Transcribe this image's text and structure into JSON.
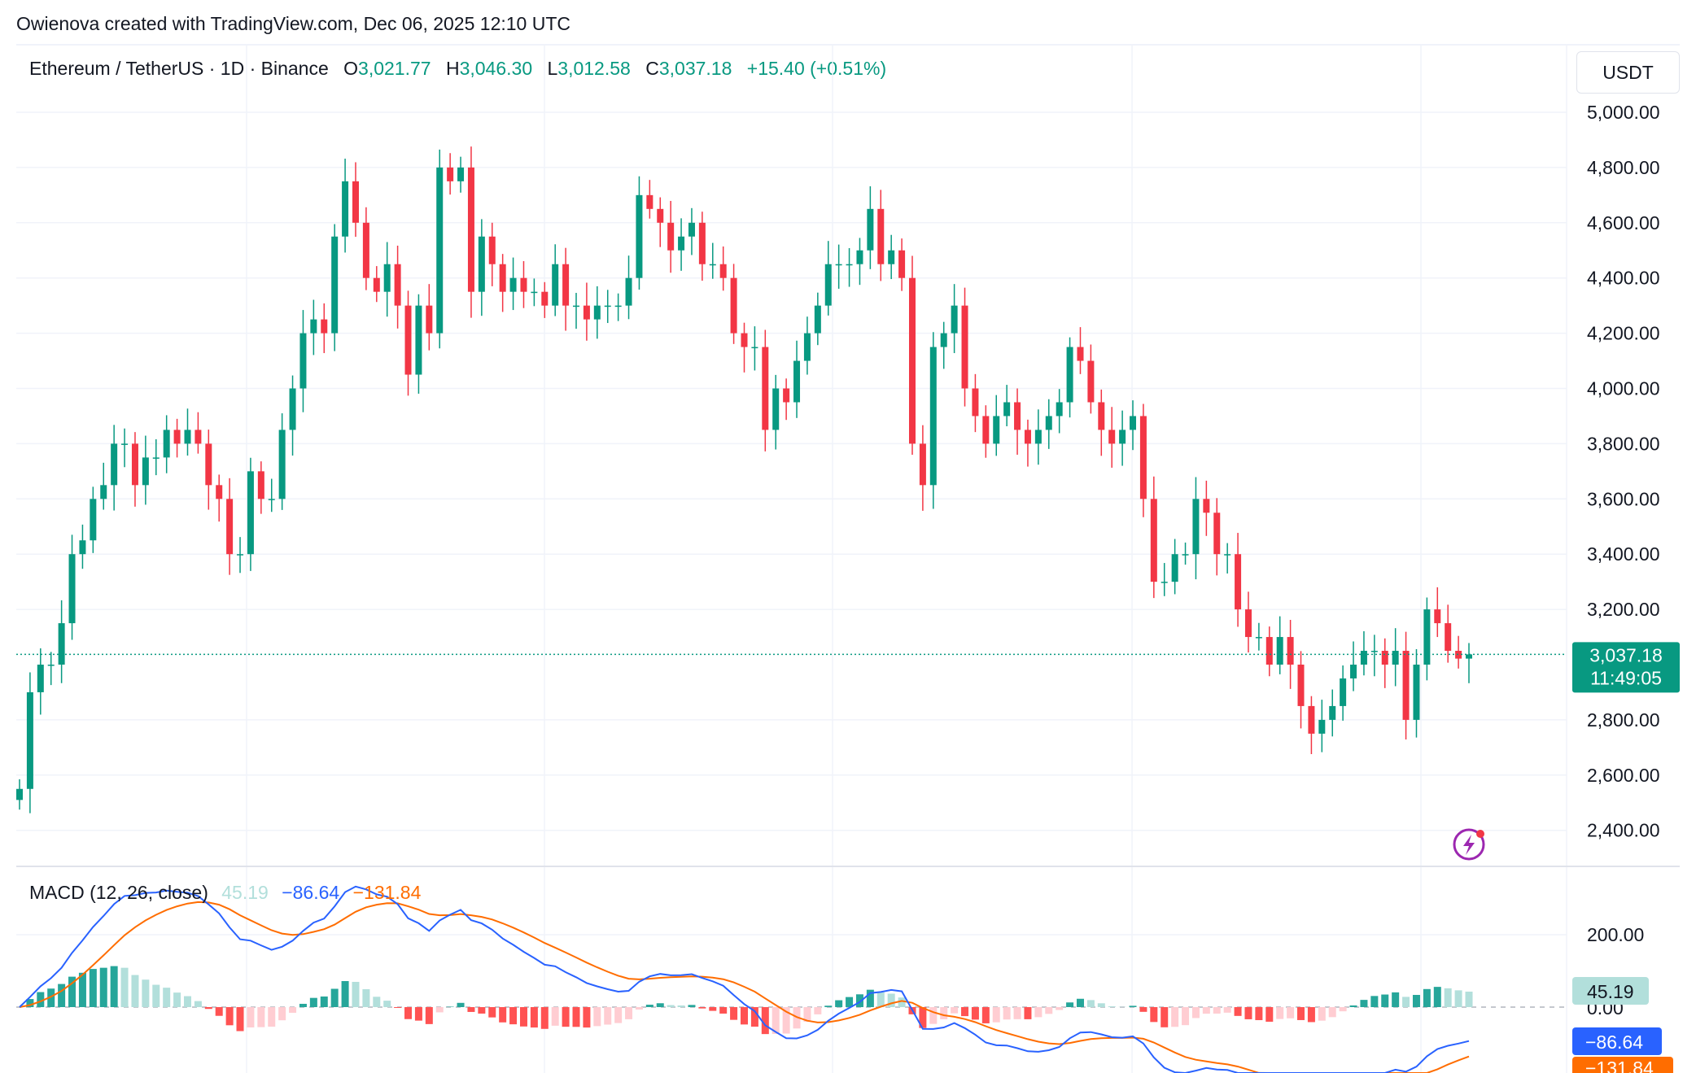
{
  "attribution": "Owienova created with TradingView.com, Dec 06, 2025 12:10 UTC",
  "legend": {
    "symbol": "Ethereum / TetherUS · 1D · Binance",
    "open_label": "O",
    "open": "3,021.77",
    "high_label": "H",
    "high": "3,046.30",
    "low_label": "L",
    "low": "3,012.58",
    "close_label": "C",
    "close": "3,037.18",
    "change": "+15.40 (+0.51%)"
  },
  "currency": "USDT",
  "price_tag": {
    "price": "3,037.18",
    "countdown": "11:49:05"
  },
  "macd": {
    "title": "MACD (12, 26, close)",
    "histogram": "45.19",
    "macd": "−86.64",
    "signal": "−131.84",
    "axis_ticks": [
      "200.00",
      "0.00"
    ]
  },
  "colors": {
    "up": "#089981",
    "down": "#F23645",
    "macd": "#2962FF",
    "signal": "#FF6D00",
    "hist_up_strong": "#26A69A",
    "hist_up_weak": "#B2DFDB",
    "hist_down_strong": "#FF5252",
    "hist_down_weak": "#FFCDD2"
  },
  "icons": {
    "alert": "lightning-icon"
  },
  "chart_data": {
    "type": "candlestick",
    "interval": "1D",
    "y_ticks": [
      "5,000.00",
      "4,800.00",
      "4,600.00",
      "4,400.00",
      "4,200.00",
      "4,000.00",
      "3,800.00",
      "3,600.00",
      "3,400.00",
      "3,200.00",
      "2,800.00",
      "2,600.00",
      "2,400.00"
    ],
    "ylim": [
      2300,
      5100
    ],
    "last_price": 3037.18,
    "closes": [
      2550,
      2900,
      3000,
      3000,
      3150,
      3400,
      3450,
      3600,
      3650,
      3800,
      3800,
      3650,
      3750,
      3750,
      3850,
      3800,
      3850,
      3800,
      3650,
      3600,
      3400,
      3400,
      3700,
      3600,
      3600,
      3850,
      4000,
      4200,
      4250,
      4200,
      4550,
      4750,
      4600,
      4400,
      4350,
      4450,
      4300,
      4050,
      4300,
      4200,
      4800,
      4750,
      4800,
      4350,
      4550,
      4450,
      4350,
      4400,
      4350,
      4350,
      4300,
      4450,
      4300,
      4300,
      4250,
      4300,
      4300,
      4300,
      4400,
      4700,
      4650,
      4600,
      4500,
      4550,
      4600,
      4450,
      4450,
      4400,
      4200,
      4150,
      4150,
      3850,
      4000,
      3950,
      4100,
      4200,
      4300,
      4450,
      4450,
      4450,
      4500,
      4650,
      4450,
      4500,
      4400,
      3800,
      3650,
      4150,
      4200,
      4300,
      4000,
      3900,
      3800,
      3900,
      3950,
      3850,
      3800,
      3850,
      3900,
      3950,
      4150,
      4100,
      3950,
      3850,
      3800,
      3850,
      3900,
      3600,
      3300,
      3300,
      3400,
      3400,
      3600,
      3550,
      3400,
      3400,
      3200,
      3100,
      3100,
      3000,
      3100,
      3000,
      2850,
      2750,
      2800,
      2850,
      2950,
      3000,
      3050,
      3050,
      3000,
      3050,
      2800,
      3000,
      3200,
      3150,
      3050,
      3021.77,
      3037.18
    ]
  }
}
